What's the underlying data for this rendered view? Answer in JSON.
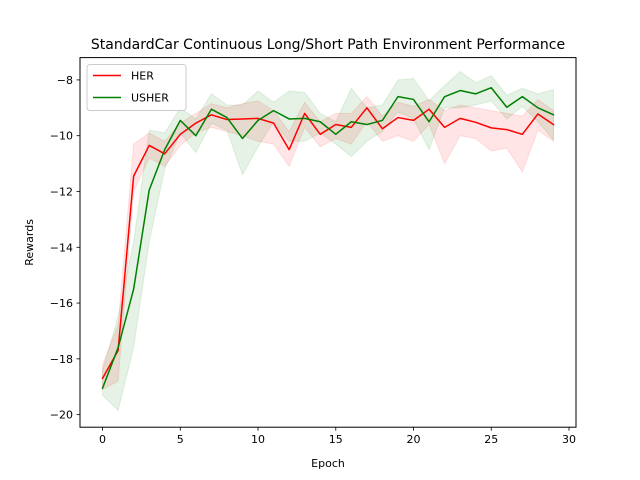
{
  "chart_data": {
    "type": "line",
    "title": "StandardCar Continuous Long/Short Path Environment Performance",
    "xlabel": "Epoch",
    "ylabel": "Rewards",
    "xlim": [
      -1.45,
      30.45
    ],
    "ylim": [
      -20.45,
      -7.2
    ],
    "xticks": [
      0,
      5,
      10,
      15,
      20,
      25,
      30
    ],
    "yticks": [
      -20,
      -18,
      -16,
      -14,
      -12,
      -10,
      -8
    ],
    "xtick_labels": [
      "0",
      "5",
      "10",
      "15",
      "20",
      "25",
      "30"
    ],
    "ytick_labels": [
      "−20",
      "−18",
      "−16",
      "−14",
      "−12",
      "−10",
      "−8"
    ],
    "grid": false,
    "legend_position": "top-left",
    "x": [
      0,
      1,
      2,
      3,
      4,
      5,
      6,
      7,
      8,
      9,
      10,
      11,
      12,
      13,
      14,
      15,
      16,
      17,
      18,
      19,
      20,
      21,
      22,
      23,
      24,
      25,
      26,
      27,
      28,
      29
    ],
    "series": [
      {
        "name": "HER",
        "color": "#ff0000",
        "values": [
          -18.7,
          -17.7,
          -11.45,
          -10.35,
          -10.65,
          -9.95,
          -9.55,
          -9.25,
          -9.42,
          -9.4,
          -9.38,
          -9.55,
          -10.5,
          -9.2,
          -9.95,
          -9.6,
          -9.7,
          -9.0,
          -9.75,
          -9.35,
          -9.45,
          -9.05,
          -9.7,
          -9.38,
          -9.52,
          -9.72,
          -9.78,
          -9.95,
          -9.22,
          -9.6
        ],
        "upper": [
          -18.2,
          -16.8,
          -10.3,
          -9.9,
          -10.2,
          -9.55,
          -9.2,
          -8.85,
          -9.0,
          -8.85,
          -8.75,
          -9.1,
          -9.85,
          -8.8,
          -9.5,
          -9.2,
          -9.2,
          -8.6,
          -9.3,
          -8.8,
          -8.95,
          -8.7,
          -9.1,
          -8.9,
          -9.0,
          -9.1,
          -9.2,
          -9.3,
          -8.7,
          -9.1
        ],
        "lower": [
          -19.1,
          -18.8,
          -12.0,
          -10.8,
          -11.1,
          -10.35,
          -9.9,
          -9.7,
          -9.85,
          -10.0,
          -10.2,
          -10.3,
          -11.1,
          -9.7,
          -10.4,
          -10.1,
          -10.3,
          -9.5,
          -10.2,
          -10.0,
          -10.2,
          -9.6,
          -11.0,
          -10.0,
          -10.1,
          -10.55,
          -10.45,
          -11.3,
          -9.8,
          -10.2
        ]
      },
      {
        "name": "USHER",
        "color": "#008000",
        "values": [
          -19.05,
          -17.6,
          -15.5,
          -11.95,
          -10.5,
          -9.45,
          -10.0,
          -9.05,
          -9.35,
          -10.1,
          -9.45,
          -9.1,
          -9.4,
          -9.38,
          -9.5,
          -9.95,
          -9.5,
          -9.6,
          -9.45,
          -8.6,
          -8.7,
          -9.5,
          -8.6,
          -8.38,
          -8.5,
          -8.28,
          -8.98,
          -8.6,
          -9.0,
          -9.25
        ],
        "upper": [
          -18.4,
          -16.5,
          -13.8,
          -9.8,
          -9.9,
          -9.0,
          -9.4,
          -8.5,
          -8.9,
          -8.9,
          -8.4,
          -8.8,
          -8.4,
          -8.45,
          -9.2,
          -9.5,
          -8.3,
          -9.0,
          -8.9,
          -8.0,
          -7.95,
          -8.75,
          -8.2,
          -7.7,
          -8.1,
          -7.85,
          -8.55,
          -8.3,
          -8.5,
          -8.35
        ],
        "lower": [
          -19.3,
          -19.85,
          -17.6,
          -13.8,
          -11.2,
          -9.9,
          -10.6,
          -9.55,
          -9.8,
          -11.4,
          -10.4,
          -9.5,
          -10.2,
          -10.2,
          -9.9,
          -10.3,
          -10.75,
          -10.2,
          -9.85,
          -9.15,
          -9.4,
          -10.5,
          -9.0,
          -9.0,
          -8.9,
          -8.75,
          -9.4,
          -8.95,
          -9.5,
          -10.15
        ]
      }
    ]
  }
}
